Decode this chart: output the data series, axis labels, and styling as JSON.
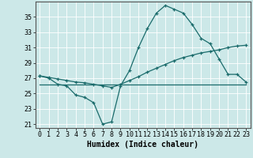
{
  "xlabel": "Humidex (Indice chaleur)",
  "bg_color": "#cce8e8",
  "grid_color": "#ffffff",
  "line_color": "#1a6b6b",
  "xlim": [
    -0.5,
    23.5
  ],
  "ylim": [
    20.5,
    37.0
  ],
  "xticks": [
    0,
    1,
    2,
    3,
    4,
    5,
    6,
    7,
    8,
    9,
    10,
    11,
    12,
    13,
    14,
    15,
    16,
    17,
    18,
    19,
    20,
    21,
    22,
    23
  ],
  "yticks": [
    21,
    23,
    25,
    27,
    29,
    31,
    33,
    35
  ],
  "line1_x": [
    0,
    1,
    2,
    3,
    4,
    5,
    6,
    7,
    8,
    9,
    10,
    11,
    12,
    13,
    14,
    15,
    16,
    17,
    18,
    19,
    20,
    21,
    22,
    23
  ],
  "line1_y": [
    27.3,
    27.0,
    26.2,
    26.0,
    24.8,
    24.5,
    23.8,
    21.0,
    21.3,
    26.0,
    28.0,
    31.0,
    33.5,
    35.5,
    36.5,
    36.0,
    35.5,
    34.0,
    32.2,
    31.5,
    29.5,
    27.5,
    27.5,
    26.5
  ],
  "line2_x": [
    0,
    1,
    2,
    3,
    4,
    5,
    6,
    7,
    8,
    9,
    10,
    11,
    12,
    13,
    14,
    15,
    16,
    17,
    18,
    19,
    20,
    21,
    22,
    23
  ],
  "line2_y": [
    27.3,
    27.1,
    26.9,
    26.7,
    26.5,
    26.4,
    26.2,
    26.0,
    25.8,
    26.2,
    26.7,
    27.2,
    27.8,
    28.3,
    28.8,
    29.3,
    29.7,
    30.0,
    30.3,
    30.5,
    30.7,
    31.0,
    31.2,
    31.3
  ],
  "line3_x": [
    0,
    23
  ],
  "line3_y": [
    26.2,
    26.2
  ],
  "fontsize_label": 7,
  "fontsize_tick": 6,
  "xlabel_fontsize": 7
}
